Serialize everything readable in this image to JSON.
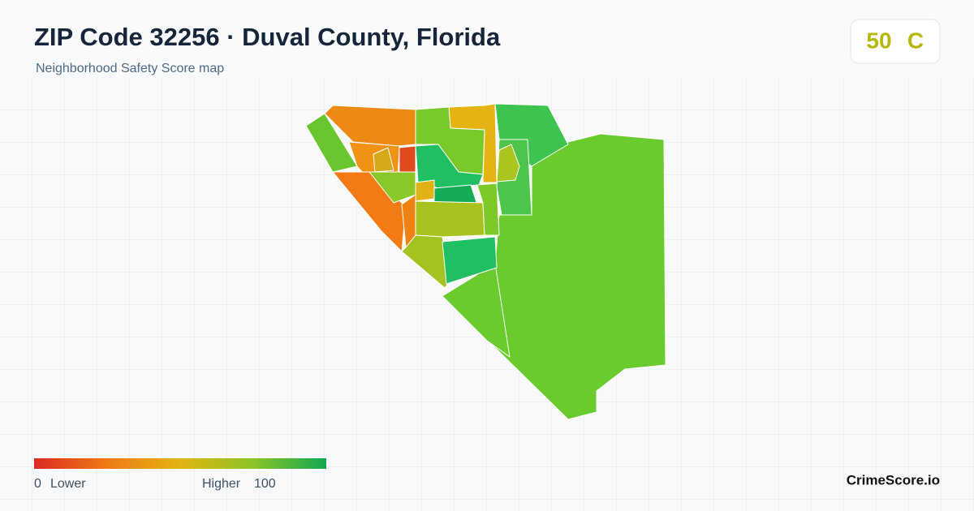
{
  "header": {
    "title": "ZIP Code 32256 · Duval County, Florida",
    "subtitle": "Neighborhood Safety Score map"
  },
  "score": {
    "value": 50,
    "grade": "C"
  },
  "legend": {
    "min": 0,
    "min_label": "Lower",
    "max_label": "Higher",
    "max": 100
  },
  "brand": "CrimeScore.io"
}
